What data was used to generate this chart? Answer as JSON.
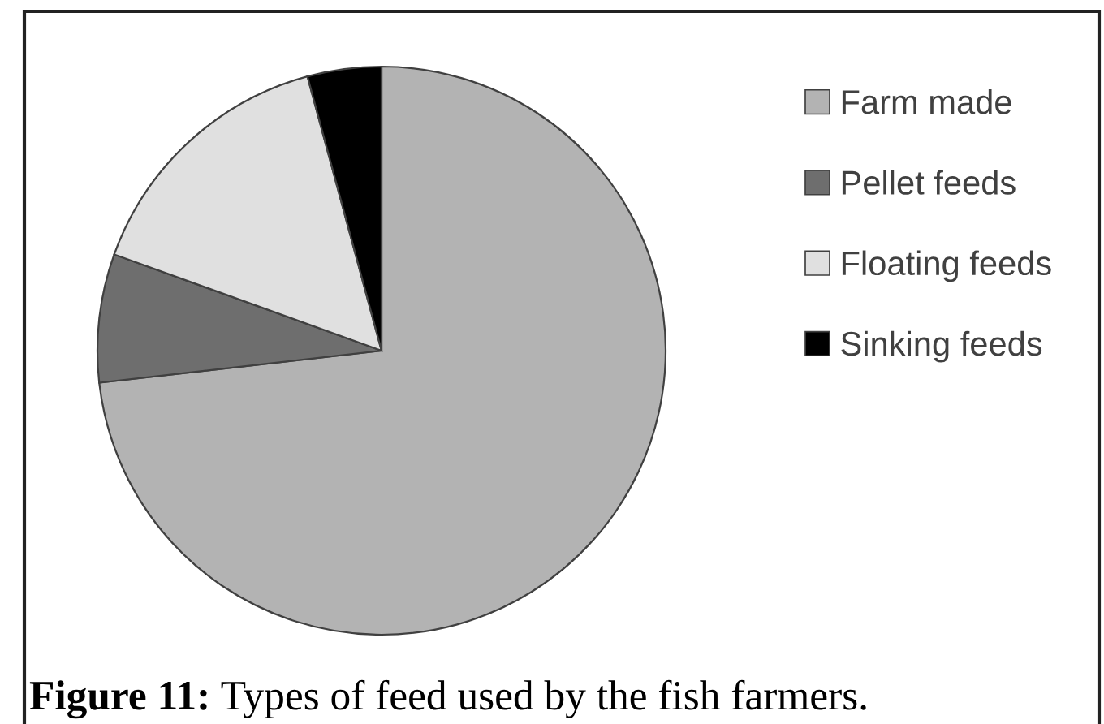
{
  "chart_data": {
    "type": "pie",
    "categories": [
      "Farm made",
      "Pellet feeds",
      "Floating feeds",
      "Sinking feeds"
    ],
    "values": [
      73.2,
      7.3,
      15.3,
      4.2
    ],
    "colors": [
      "#b3b3b3",
      "#6e6e6e",
      "#e0e0e0",
      "#000000"
    ],
    "legend": "right",
    "annotations": [
      "Figure 11: Types of feed used by the fish farmers."
    ]
  }
}
